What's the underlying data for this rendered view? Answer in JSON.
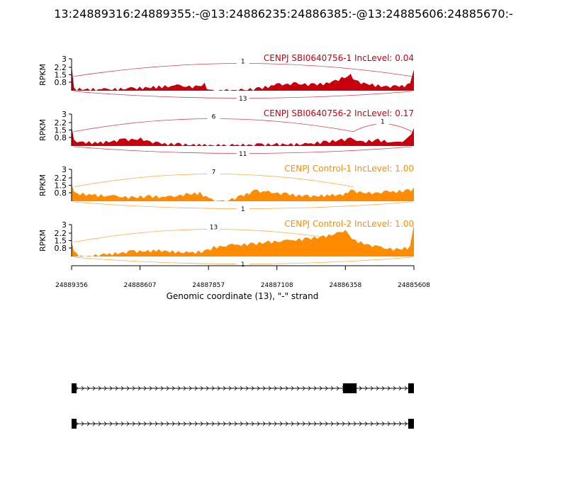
{
  "figure": {
    "title": "13:24889316:24889355:-@13:24886235:24886385:-@13:24885606:24885670:-"
  },
  "chart_data": {
    "type": "sashimi",
    "title": "13:24889316:24889355:-@13:24886235:24886385:-@13:24885606:24885670:-",
    "xlabel": "Genomic coordinate (13), \"-\" strand",
    "x_ticks": [
      "24889356",
      "24888607",
      "24887857",
      "24887108",
      "24886358",
      "24885608"
    ],
    "x_tick_values": [
      24889356,
      24888607,
      24887857,
      24887108,
      24886358,
      24885608
    ],
    "xlim": [
      24889356,
      24885608
    ],
    "x_reversed": true,
    "panels": [
      {
        "label": "CENPJ SBI0640756-1 IncLevel: 0.04",
        "color": "#c8000e",
        "ylabel": "RPKM",
        "y_ticks": [
          "3",
          "2.2",
          "1.5",
          "0.8"
        ],
        "ylim": [
          0,
          3
        ],
        "coverage": [
          [
            24889356,
            2.4
          ],
          [
            24889330,
            0.3
          ],
          [
            24889000,
            0.25
          ],
          [
            24888700,
            0.35
          ],
          [
            24888400,
            0.5
          ],
          [
            24888200,
            0.6
          ],
          [
            24888000,
            0.5
          ],
          [
            24887900,
            0.75
          ],
          [
            24887850,
            0.1
          ],
          [
            24887500,
            0.2
          ],
          [
            24887300,
            0.35
          ],
          [
            24887108,
            0.7
          ],
          [
            24886900,
            0.8
          ],
          [
            24886700,
            0.7
          ],
          [
            24886500,
            0.9
          ],
          [
            24886400,
            1.3
          ],
          [
            24886300,
            1.6
          ],
          [
            24886250,
            1.0
          ],
          [
            24886000,
            0.6
          ],
          [
            24885800,
            0.5
          ],
          [
            24885650,
            0.7
          ],
          [
            24885608,
            2.0
          ]
        ],
        "junctions": [
          {
            "start": 24889330,
            "end": 24885630,
            "count": "1",
            "side": "above"
          },
          {
            "start": 24889330,
            "end": 24885630,
            "count": "13",
            "side": "below"
          }
        ]
      },
      {
        "label": "CENPJ SBI0640756-2 IncLevel: 0.17",
        "color": "#c8000e",
        "ylabel": "RPKM",
        "y_ticks": [
          "3",
          "2.2",
          "1.5",
          "0.8"
        ],
        "ylim": [
          0,
          3
        ],
        "coverage": [
          [
            24889356,
            1.8
          ],
          [
            24889330,
            0.6
          ],
          [
            24889100,
            0.4
          ],
          [
            24888800,
            0.7
          ],
          [
            24888600,
            0.8
          ],
          [
            24888400,
            0.35
          ],
          [
            24888200,
            0.3
          ],
          [
            24887900,
            0.2
          ],
          [
            24887600,
            0.2
          ],
          [
            24887300,
            0.25
          ],
          [
            24887108,
            0.3
          ],
          [
            24886800,
            0.3
          ],
          [
            24886600,
            0.5
          ],
          [
            24886400,
            0.7
          ],
          [
            24886300,
            0.8
          ],
          [
            24886200,
            0.5
          ],
          [
            24886000,
            0.7
          ],
          [
            24885800,
            0.4
          ],
          [
            24885700,
            0.6
          ],
          [
            24885608,
            1.7
          ]
        ],
        "junctions": [
          {
            "start": 24889330,
            "end": 24886270,
            "count": "6",
            "side": "above"
          },
          {
            "start": 24886270,
            "end": 24885630,
            "count": "1",
            "side": "above"
          },
          {
            "start": 24889330,
            "end": 24885630,
            "count": "11",
            "side": "below"
          }
        ]
      },
      {
        "label": "CENPJ Control-1 IncLevel: 1.00",
        "color": "#ff8c00",
        "ylabel": "RPKM",
        "y_ticks": [
          "3",
          "2.2",
          "1.5",
          "0.8"
        ],
        "ylim": [
          0,
          3
        ],
        "coverage": [
          [
            24889356,
            1.6
          ],
          [
            24889330,
            0.9
          ],
          [
            24889100,
            0.7
          ],
          [
            24888900,
            0.6
          ],
          [
            24888700,
            0.5
          ],
          [
            24888500,
            0.6
          ],
          [
            24888300,
            0.5
          ],
          [
            24888100,
            0.8
          ],
          [
            24887950,
            0.9
          ],
          [
            24887850,
            0.3
          ],
          [
            24887700,
            0.1
          ],
          [
            24887500,
            0.6
          ],
          [
            24887350,
            1.1
          ],
          [
            24887200,
            1.0
          ],
          [
            24887000,
            0.8
          ],
          [
            24886800,
            0.6
          ],
          [
            24886500,
            0.7
          ],
          [
            24886358,
            0.8
          ],
          [
            24886300,
            1.1
          ],
          [
            24886100,
            0.9
          ],
          [
            24885900,
            1.0
          ],
          [
            24885700,
            1.1
          ],
          [
            24885608,
            1.3
          ]
        ],
        "junctions": [
          {
            "start": 24889330,
            "end": 24886270,
            "count": "7",
            "side": "above"
          },
          {
            "start": 24889330,
            "end": 24885630,
            "count": "1",
            "side": "below"
          }
        ]
      },
      {
        "label": "CENPJ Control-2 IncLevel: 1.00",
        "color": "#ff8c00",
        "ylabel": "RPKM",
        "y_ticks": [
          "3",
          "2.2",
          "1.5",
          "0.8"
        ],
        "ylim": [
          0,
          3
        ],
        "coverage": [
          [
            24889356,
            1.4
          ],
          [
            24889330,
            0.5
          ],
          [
            24889250,
            0.1
          ],
          [
            24889000,
            0.3
          ],
          [
            24888700,
            0.6
          ],
          [
            24888400,
            0.7
          ],
          [
            24888100,
            0.5
          ],
          [
            24887900,
            0.6
          ],
          [
            24887800,
            1.0
          ],
          [
            24887600,
            1.2
          ],
          [
            24887400,
            1.3
          ],
          [
            24887200,
            1.5
          ],
          [
            24887000,
            1.6
          ],
          [
            24886800,
            1.8
          ],
          [
            24886600,
            2.0
          ],
          [
            24886450,
            2.3
          ],
          [
            24886358,
            2.5
          ],
          [
            24886250,
            1.6
          ],
          [
            24886000,
            1.0
          ],
          [
            24885800,
            0.8
          ],
          [
            24885650,
            1.0
          ],
          [
            24885608,
            3.0
          ]
        ],
        "junctions": [
          {
            "start": 24889330,
            "end": 24886270,
            "count": "13",
            "side": "above"
          },
          {
            "start": 24889330,
            "end": 24885630,
            "count": "1",
            "side": "below"
          }
        ]
      }
    ],
    "isoforms": [
      {
        "exons": [
          [
            24889356,
            24889316
          ],
          [
            24886385,
            24886235
          ],
          [
            24885670,
            24885608
          ]
        ]
      },
      {
        "exons": [
          [
            24889356,
            24889316
          ],
          [
            24885670,
            24885608
          ]
        ]
      }
    ],
    "grid": false
  }
}
